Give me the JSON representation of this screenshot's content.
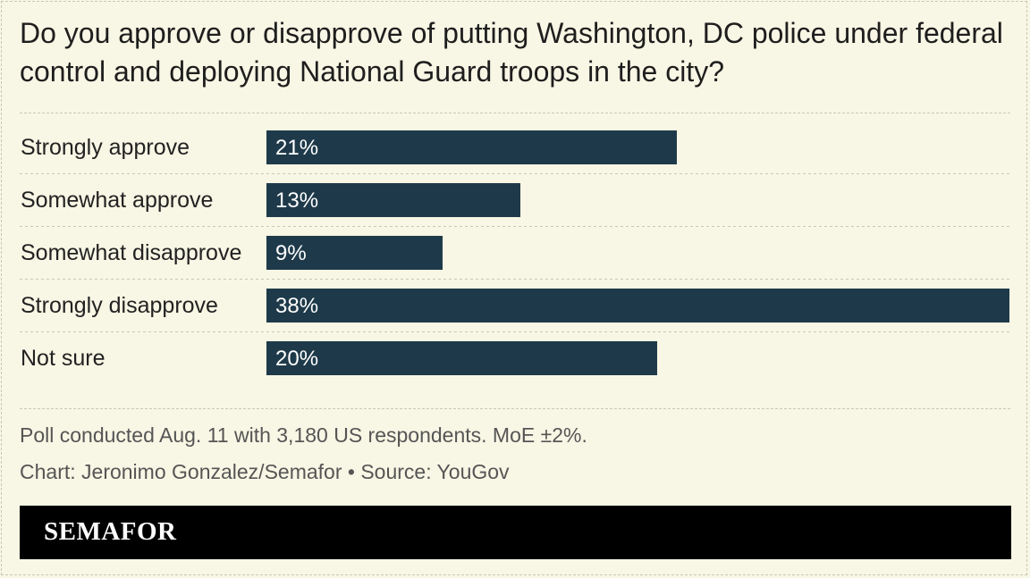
{
  "chart_data": {
    "type": "bar",
    "orientation": "horizontal",
    "title": "Do you approve or disapprove of putting Washington, DC police under federal control and deploying National Guard troops in the city?",
    "categories": [
      "Strongly approve",
      "Somewhat approve",
      "Somewhat disapprove",
      "Strongly disapprove",
      "Not sure"
    ],
    "values": [
      21,
      13,
      9,
      38,
      20
    ],
    "value_labels": [
      "21%",
      "13%",
      "9%",
      "38%",
      "20%"
    ],
    "unit": "%",
    "xlim": [
      0,
      38
    ],
    "grid": false,
    "legend": "none",
    "colors": {
      "bar": "#1e3a4a",
      "background": "#f8f6e4"
    }
  },
  "notes": {
    "poll": "Poll conducted Aug. 11 with 3,180 US respondents. MoE ±2%.",
    "credit": "Chart: Jeronimo Gonzalez/Semafor • Source: YouGov"
  },
  "brand": {
    "name": "SEMAFOR"
  }
}
